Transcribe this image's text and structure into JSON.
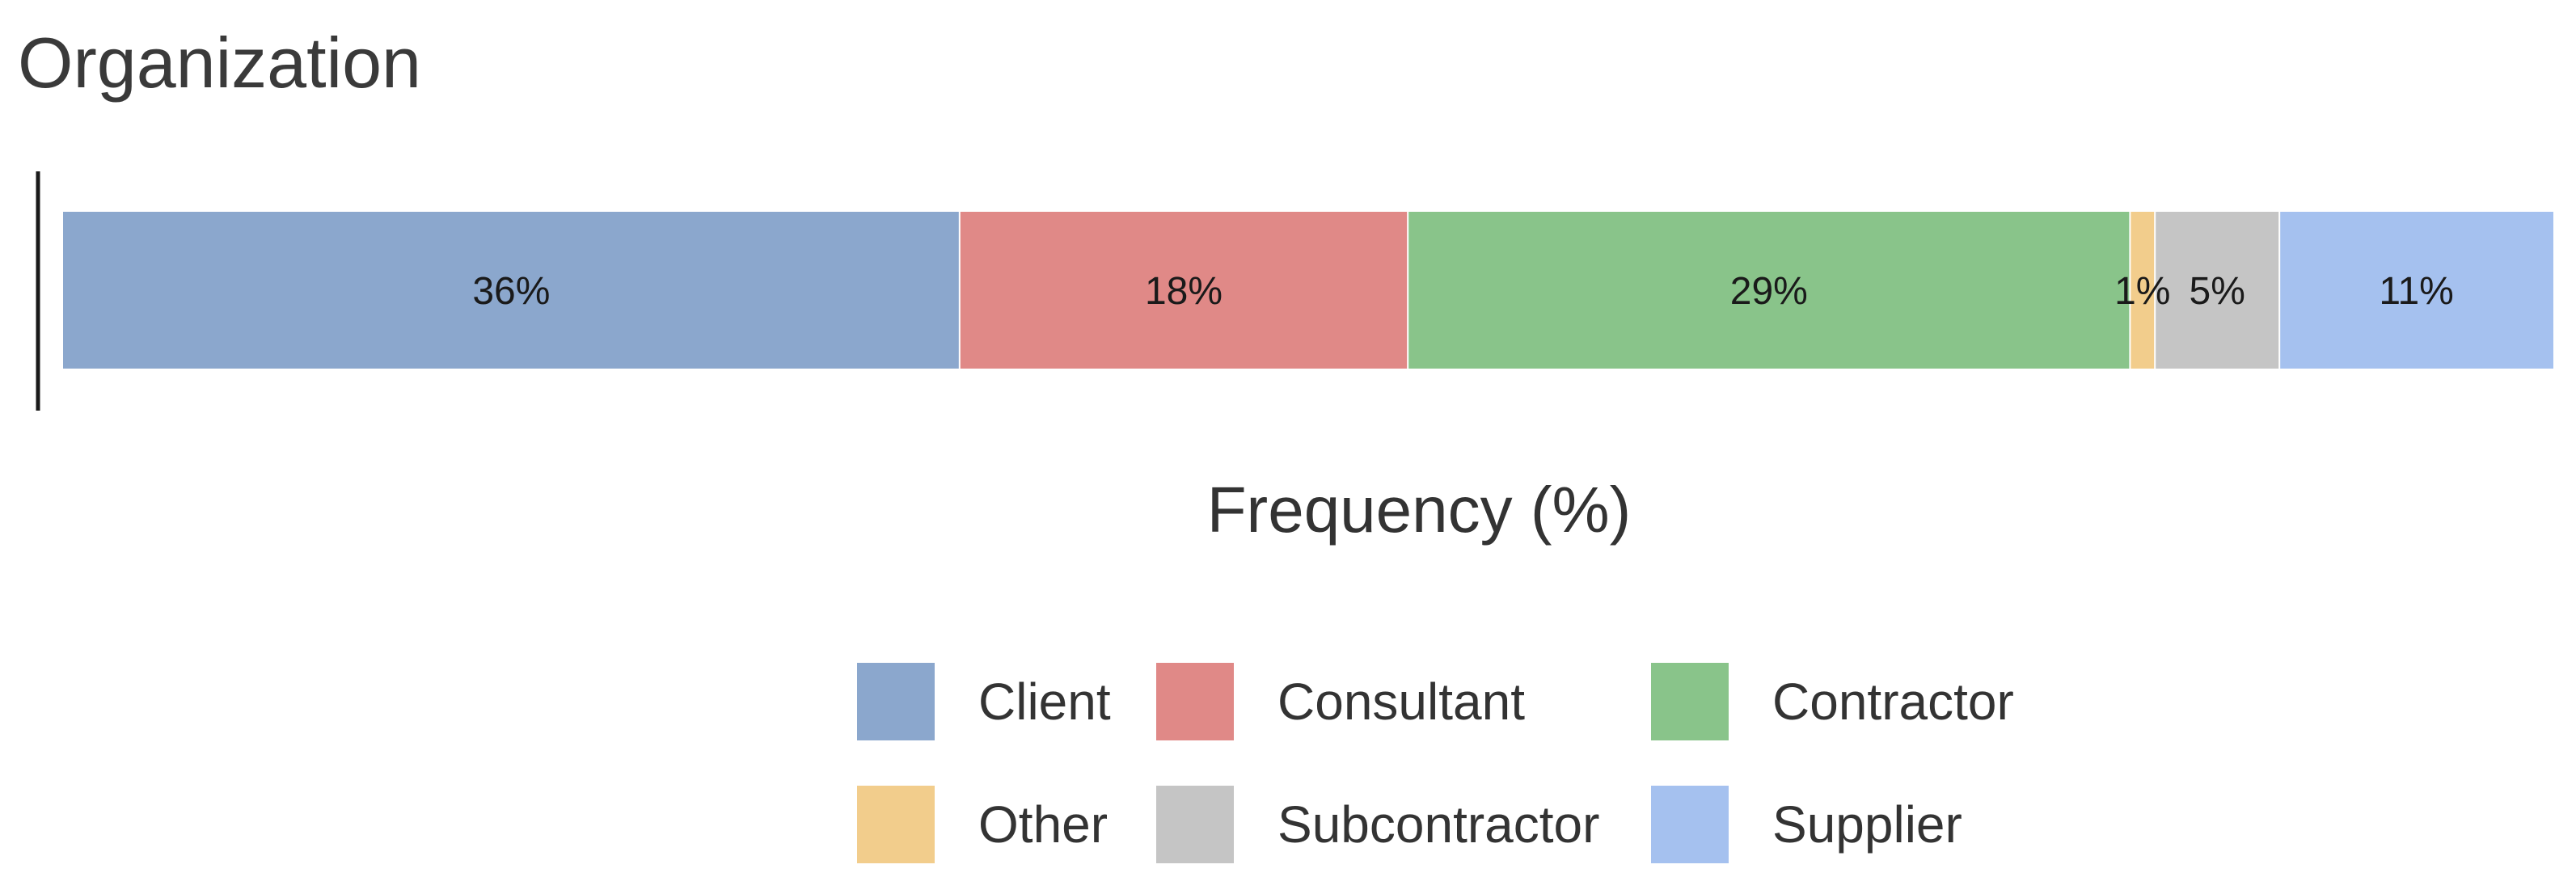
{
  "chart_data": {
    "type": "bar",
    "orientation": "horizontal",
    "stacked": true,
    "title": "Organization",
    "xlabel": "Frequency (%)",
    "ylabel": "",
    "xlim": [
      0,
      100
    ],
    "grid": false,
    "legend_position": "bottom",
    "categories": [
      ""
    ],
    "series": [
      {
        "name": "Client",
        "values": [
          36
        ],
        "label": "36%",
        "color": "#8ba7cd"
      },
      {
        "name": "Consultant",
        "values": [
          18
        ],
        "label": "18%",
        "color": "#e08987"
      },
      {
        "name": "Contractor",
        "values": [
          29
        ],
        "label": "29%",
        "color": "#89c48a"
      },
      {
        "name": "Other",
        "values": [
          1
        ],
        "label": "1%",
        "color": "#f2cd8c"
      },
      {
        "name": "Subcontractor",
        "values": [
          5
        ],
        "label": "5%",
        "color": "#c5c5c5"
      },
      {
        "name": "Supplier",
        "values": [
          11
        ],
        "label": "11%",
        "color": "#a5c1ef"
      }
    ]
  }
}
